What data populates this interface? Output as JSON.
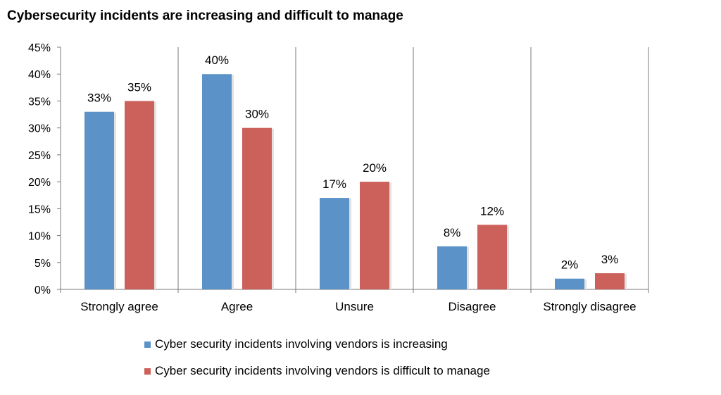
{
  "title": "Cybersecurity incidents are increasing and difficult to manage",
  "chart_data": {
    "type": "bar",
    "categories": [
      "Strongly agree",
      "Agree",
      "Unsure",
      "Disagree",
      "Strongly disagree"
    ],
    "series": [
      {
        "name": "Cyber security incidents involving vendors is increasing",
        "values": [
          33,
          40,
          17,
          8,
          2
        ],
        "labels": [
          "33%",
          "40%",
          "17%",
          "8%",
          "2%"
        ],
        "color": "#5b93c8"
      },
      {
        "name": "Cyber security incidents involving vendors is difficult to manage",
        "values": [
          35,
          30,
          20,
          12,
          3
        ],
        "labels": [
          "35%",
          "30%",
          "20%",
          "12%",
          "3%"
        ],
        "color": "#cc605a"
      }
    ],
    "ylim": [
      0,
      45
    ],
    "yticks": [
      "0%",
      "5%",
      "10%",
      "15%",
      "20%",
      "25%",
      "30%",
      "35%",
      "40%",
      "45%"
    ],
    "grid": false,
    "legend_position": "bottom"
  }
}
